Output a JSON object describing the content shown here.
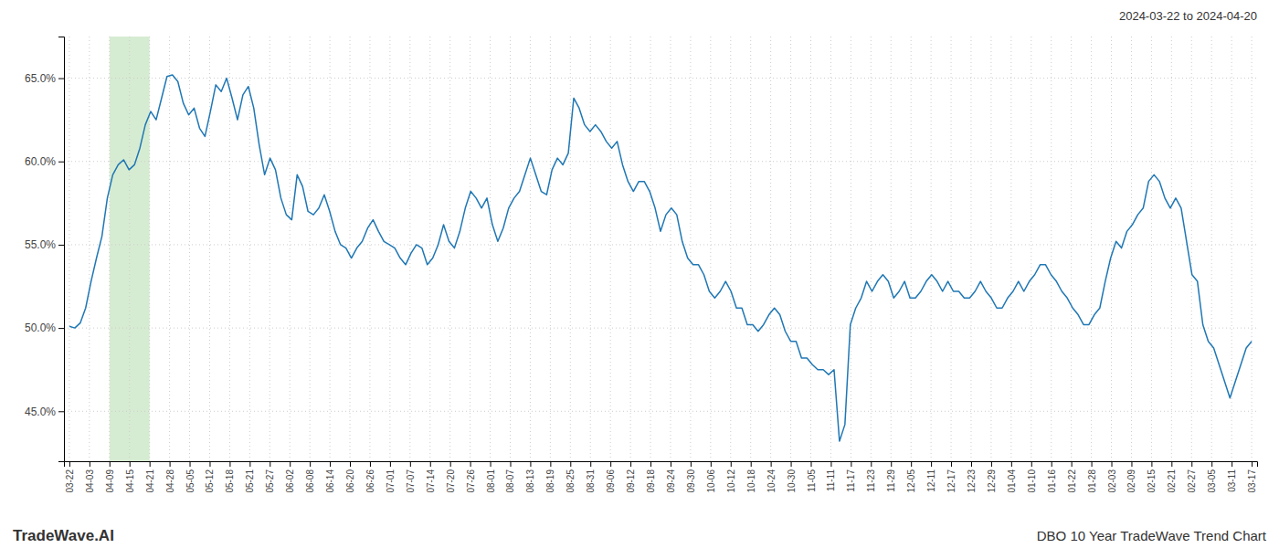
{
  "chart_data": {
    "type": "line",
    "title": "2024-03-22 to 2024-04-20",
    "annotations": [
      "TradeWave.AI",
      "DBO 10 Year TradeWave Trend Chart"
    ],
    "color": "#1f77b4",
    "grid": true,
    "highlight": [
      7.3898,
      14.7797
    ],
    "highlight_color": "#d6ecd2",
    "xlim": [
      -1,
      219
    ],
    "xticks": [
      {
        "value": 0,
        "label": "03-22"
      },
      {
        "value": 3.6949,
        "label": "04-03"
      },
      {
        "value": 7.3898,
        "label": "04-09"
      },
      {
        "value": 11.0847,
        "label": "04-15"
      },
      {
        "value": 14.7797,
        "label": "04-21"
      },
      {
        "value": 18.4746,
        "label": "04-28"
      },
      {
        "value": 22.1695,
        "label": "05-05"
      },
      {
        "value": 25.8644,
        "label": "05-12"
      },
      {
        "value": 29.5593,
        "label": "05-18"
      },
      {
        "value": 33.2542,
        "label": "05-21"
      },
      {
        "value": 36.9492,
        "label": "05-27"
      },
      {
        "value": 40.6441,
        "label": "06-02"
      },
      {
        "value": 44.339,
        "label": "06-08"
      },
      {
        "value": 48.0339,
        "label": "06-14"
      },
      {
        "value": 51.7288,
        "label": "06-20"
      },
      {
        "value": 55.4237,
        "label": "06-26"
      },
      {
        "value": 59.1186,
        "label": "07-01"
      },
      {
        "value": 62.8136,
        "label": "07-07"
      },
      {
        "value": 66.5085,
        "label": "07-14"
      },
      {
        "value": 70.2034,
        "label": "07-20"
      },
      {
        "value": 73.8983,
        "label": "07-26"
      },
      {
        "value": 77.5932,
        "label": "08-01"
      },
      {
        "value": 81.2881,
        "label": "08-07"
      },
      {
        "value": 84.9831,
        "label": "08-13"
      },
      {
        "value": 88.678,
        "label": "08-19"
      },
      {
        "value": 92.3729,
        "label": "08-25"
      },
      {
        "value": 96.0678,
        "label": "08-31"
      },
      {
        "value": 99.7627,
        "label": "09-06"
      },
      {
        "value": 103.4576,
        "label": "09-12"
      },
      {
        "value": 107.1525,
        "label": "09-18"
      },
      {
        "value": 110.8475,
        "label": "09-24"
      },
      {
        "value": 114.5424,
        "label": "09-30"
      },
      {
        "value": 118.2373,
        "label": "10-06"
      },
      {
        "value": 121.9322,
        "label": "10-12"
      },
      {
        "value": 125.6271,
        "label": "10-18"
      },
      {
        "value": 129.322,
        "label": "10-24"
      },
      {
        "value": 133.0169,
        "label": "10-30"
      },
      {
        "value": 136.7119,
        "label": "11-05"
      },
      {
        "value": 140.4068,
        "label": "11-11"
      },
      {
        "value": 144.1017,
        "label": "11-17"
      },
      {
        "value": 147.7966,
        "label": "11-23"
      },
      {
        "value": 151.4915,
        "label": "11-29"
      },
      {
        "value": 155.1864,
        "label": "12-05"
      },
      {
        "value": 158.8814,
        "label": "12-11"
      },
      {
        "value": 162.5763,
        "label": "12-17"
      },
      {
        "value": 166.2712,
        "label": "12-23"
      },
      {
        "value": 169.9661,
        "label": "12-29"
      },
      {
        "value": 173.661,
        "label": "01-04"
      },
      {
        "value": 177.3559,
        "label": "01-10"
      },
      {
        "value": 181.0508,
        "label": "01-16"
      },
      {
        "value": 184.7458,
        "label": "01-22"
      },
      {
        "value": 188.4407,
        "label": "01-28"
      },
      {
        "value": 192.1356,
        "label": "02-03"
      },
      {
        "value": 195.8305,
        "label": "02-09"
      },
      {
        "value": 199.5254,
        "label": "02-15"
      },
      {
        "value": 203.2203,
        "label": "02-21"
      },
      {
        "value": 206.9153,
        "label": "02-27"
      },
      {
        "value": 210.6102,
        "label": "03-05"
      },
      {
        "value": 214.3051,
        "label": "03-11"
      },
      {
        "value": 218,
        "label": "03-17"
      }
    ],
    "ylim": [
      42.0,
      67.5
    ],
    "yticks": [
      {
        "value": 45.0,
        "label": "45.0%"
      },
      {
        "value": 50.0,
        "label": "50.0%"
      },
      {
        "value": 55.0,
        "label": "55.0%"
      },
      {
        "value": 60.0,
        "label": "60.0%"
      },
      {
        "value": 65.0,
        "label": "65.0%"
      }
    ],
    "values": [
      50.1,
      50.0,
      50.3,
      51.2,
      52.8,
      54.2,
      55.5,
      57.8,
      59.2,
      59.8,
      60.1,
      59.5,
      59.8,
      60.8,
      62.2,
      63.0,
      62.5,
      63.8,
      65.1,
      65.2,
      64.8,
      63.5,
      62.8,
      63.2,
      62.0,
      61.5,
      63.0,
      64.6,
      64.2,
      65.0,
      63.8,
      62.5,
      64.0,
      64.5,
      63.2,
      61.0,
      59.2,
      60.2,
      59.5,
      57.8,
      56.8,
      56.5,
      59.2,
      58.5,
      57.0,
      56.8,
      57.2,
      58.0,
      57.0,
      55.8,
      55.0,
      54.8,
      54.2,
      54.8,
      55.2,
      56.0,
      56.5,
      55.8,
      55.2,
      55.0,
      54.8,
      54.2,
      53.8,
      54.5,
      55.0,
      54.8,
      53.8,
      54.2,
      55.0,
      56.2,
      55.2,
      54.8,
      55.8,
      57.2,
      58.2,
      57.8,
      57.2,
      57.8,
      56.2,
      55.2,
      56.0,
      57.2,
      57.8,
      58.2,
      59.2,
      60.2,
      59.2,
      58.2,
      58.0,
      59.5,
      60.2,
      59.8,
      60.5,
      63.8,
      63.2,
      62.2,
      61.8,
      62.2,
      61.8,
      61.2,
      60.8,
      61.2,
      59.8,
      58.8,
      58.2,
      58.8,
      58.8,
      58.2,
      57.2,
      55.8,
      56.8,
      57.2,
      56.8,
      55.2,
      54.2,
      53.8,
      53.8,
      53.2,
      52.2,
      51.8,
      52.2,
      52.8,
      52.2,
      51.2,
      51.2,
      50.2,
      50.2,
      49.8,
      50.2,
      50.8,
      51.2,
      50.8,
      49.8,
      49.2,
      49.2,
      48.2,
      48.2,
      47.8,
      47.5,
      47.5,
      47.2,
      47.5,
      43.2,
      44.2,
      50.2,
      51.2,
      51.8,
      52.8,
      52.2,
      52.8,
      53.2,
      52.8,
      51.8,
      52.2,
      52.8,
      51.8,
      51.8,
      52.2,
      52.8,
      53.2,
      52.8,
      52.2,
      52.8,
      52.2,
      52.2,
      51.8,
      51.8,
      52.2,
      52.8,
      52.2,
      51.8,
      51.2,
      51.2,
      51.8,
      52.2,
      52.8,
      52.2,
      52.8,
      53.2,
      53.8,
      53.8,
      53.2,
      52.8,
      52.2,
      51.8,
      51.2,
      50.8,
      50.2,
      50.2,
      50.8,
      51.2,
      52.8,
      54.2,
      55.2,
      54.8,
      55.8,
      56.2,
      56.8,
      57.2,
      58.8,
      59.2,
      58.8,
      57.8,
      57.2,
      57.8,
      57.2,
      55.2,
      53.2,
      52.8,
      50.2,
      49.2,
      48.8,
      47.8,
      46.8,
      45.8,
      46.8,
      47.8,
      48.8,
      49.2
    ]
  }
}
